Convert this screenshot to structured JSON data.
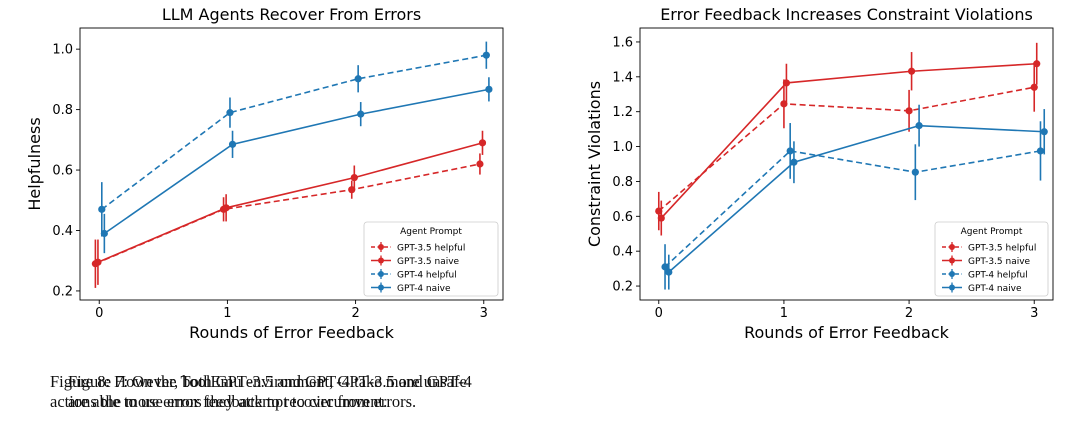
{
  "chart_data": [
    {
      "type": "line",
      "title": "LLM Agents Recover From Errors",
      "xlabel": "Rounds of Error Feedback",
      "ylabel": "Helpfulness",
      "x": [
        0,
        1,
        2,
        3
      ],
      "xlim": [
        -0.15,
        3.15
      ],
      "ylim": [
        0.17,
        1.07
      ],
      "xticks": [
        0,
        1,
        2,
        3
      ],
      "yticks": [
        0.2,
        0.4,
        0.6,
        0.8,
        1.0
      ],
      "ytick_labels": [
        "0.2",
        "0.4",
        "0.6",
        "0.8",
        "1.0"
      ],
      "grid": false,
      "legend_title": "Agent Prompt",
      "legend_position": "lower-right",
      "series": [
        {
          "name": "GPT-3.5 helpful",
          "color": "#d62728",
          "dashed": true,
          "offset": -0.03,
          "values": [
            0.29,
            0.47,
            0.535,
            0.62
          ],
          "err": [
            0.08,
            0.04,
            0.03,
            0.035
          ]
        },
        {
          "name": "GPT-3.5 naive",
          "color": "#d62728",
          "dashed": false,
          "offset": -0.01,
          "values": [
            0.295,
            0.475,
            0.575,
            0.69
          ],
          "err": [
            0.075,
            0.045,
            0.04,
            0.04
          ]
        },
        {
          "name": "GPT-4 helpful",
          "color": "#1f77b4",
          "dashed": true,
          "offset": 0.02,
          "values": [
            0.47,
            0.79,
            0.902,
            0.98
          ],
          "err": [
            0.09,
            0.05,
            0.045,
            0.045
          ]
        },
        {
          "name": "GPT-4 naive",
          "color": "#1f77b4",
          "dashed": false,
          "offset": 0.04,
          "values": [
            0.39,
            0.685,
            0.785,
            0.867
          ],
          "err": [
            0.065,
            0.045,
            0.04,
            0.04
          ]
        }
      ]
    },
    {
      "type": "line",
      "title": "Error Feedback Increases Constraint Violations",
      "xlabel": "Rounds of Error Feedback",
      "ylabel": "Constraint Violations",
      "x": [
        0,
        1,
        2,
        3
      ],
      "xlim": [
        -0.15,
        3.15
      ],
      "ylim": [
        0.12,
        1.68
      ],
      "xticks": [
        0,
        1,
        2,
        3
      ],
      "yticks": [
        0.2,
        0.4,
        0.6,
        0.8,
        1.0,
        1.2,
        1.4,
        1.6
      ],
      "ytick_labels": [
        "0.2",
        "0.4",
        "0.6",
        "0.8",
        "1.0",
        "1.2",
        "1.4",
        "1.6"
      ],
      "grid": false,
      "legend_title": "Agent Prompt",
      "legend_position": "lower-right",
      "series": [
        {
          "name": "GPT-3.5 helpful",
          "color": "#d62728",
          "dashed": true,
          "offset": 0.0,
          "values": [
            0.63,
            1.245,
            1.205,
            1.34
          ],
          "err": [
            0.11,
            0.14,
            0.12,
            0.14
          ]
        },
        {
          "name": "GPT-3.5 naive",
          "color": "#d62728",
          "dashed": false,
          "offset": 0.02,
          "values": [
            0.59,
            1.365,
            1.432,
            1.475
          ],
          "err": [
            0.1,
            0.11,
            0.11,
            0.12
          ]
        },
        {
          "name": "GPT-4 helpful",
          "color": "#1f77b4",
          "dashed": true,
          "offset": 0.05,
          "values": [
            0.31,
            0.975,
            0.853,
            0.975
          ],
          "err": [
            0.13,
            0.16,
            0.16,
            0.17
          ]
        },
        {
          "name": "GPT-4 naive",
          "color": "#1f77b4",
          "dashed": false,
          "offset": 0.08,
          "values": [
            0.28,
            0.91,
            1.12,
            1.085
          ],
          "err": [
            0.1,
            0.12,
            0.12,
            0.13
          ]
        }
      ]
    }
  ],
  "captions": {
    "fig7": {
      "label": "Figure 7:",
      "p1": " On the ToolEmu environment, G",
      "sc1": "PT",
      "p2": "-3.5 and G",
      "sc2": "PT",
      "p3": "-4",
      "line2": "are able to use error feedback to recover from errors."
    },
    "fig8": {
      "label": "Figure 8:",
      "p1": " However, both G",
      "sc1": "PT",
      "p2": "-3.5 and G",
      "sc2": "PT",
      "p3": "-4 take more unsafe",
      "line2": "actions the more errors they attempt to circumvent."
    }
  }
}
